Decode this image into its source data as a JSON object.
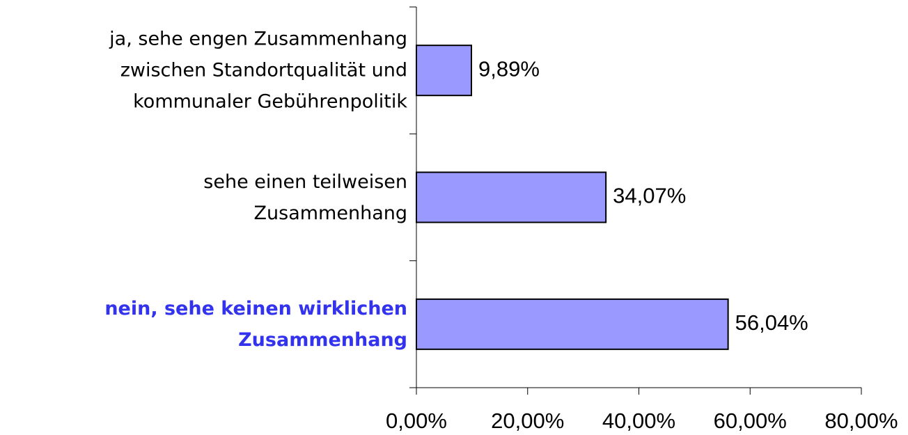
{
  "chart_data": {
    "type": "hbar",
    "categories": [
      "ja, sehe engen Zusammenhang\nzwischen Standortqualität und\nkommunaler Gebührenpolitik",
      "sehe einen teilweisen\nZusammenhang",
      "nein, sehe keinen wirklichen\nZusammenhang"
    ],
    "values": [
      9.89,
      34.07,
      56.04
    ],
    "value_labels": [
      "9,89%",
      "34,07%",
      "56,04%"
    ],
    "color": "#9999ff",
    "xlim": [
      0,
      80
    ],
    "xticks": [
      {
        "value": 0,
        "label": "0,00%"
      },
      {
        "value": 20,
        "label": "20,00%"
      },
      {
        "value": 40,
        "label": "40,00%"
      },
      {
        "value": 60,
        "label": "60,00%"
      },
      {
        "value": 80,
        "label": "80,00%"
      }
    ],
    "highlight": 2,
    "highlight_color": "#3333ee"
  }
}
